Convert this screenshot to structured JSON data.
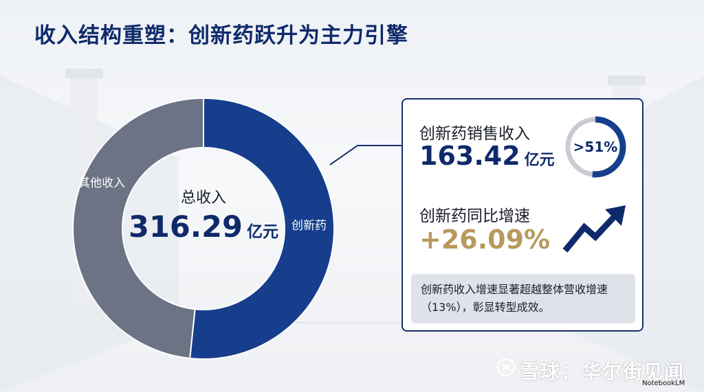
{
  "title": "收入结构重塑：创新药跃升为主力引擎",
  "colors": {
    "title": "#0f2a6b",
    "innovative": "#163e8c",
    "other": "#6b7384",
    "gold": "#b89a5e",
    "panel_border": "#16306c",
    "note_bg": "#dfe2e8"
  },
  "chart_data": {
    "type": "pie",
    "style": "donut",
    "center": {
      "label": "总收入",
      "value": "316.29",
      "unit": "亿元"
    },
    "categories": [
      "创新药",
      "其他收入"
    ],
    "values": [
      163.42,
      152.87
    ],
    "unit": "亿元"
  },
  "panel": {
    "sales_label": "创新药销售收入",
    "sales_value": "163.42",
    "sales_unit": "亿元",
    "share_badge": ">51%",
    "share_fraction": 0.5167,
    "growth_label": "创新药同比增速",
    "growth_value": "+26.09%",
    "trend_icon": "trend-up-arrow-icon",
    "note": "创新药收入增速显著超越整体营收增速（13%），彰显转型成效。"
  },
  "watermark": {
    "text": "雪球：华尔街见闻",
    "icon": "snowball-logo-icon",
    "notebook_mark": "NotebookLM"
  }
}
